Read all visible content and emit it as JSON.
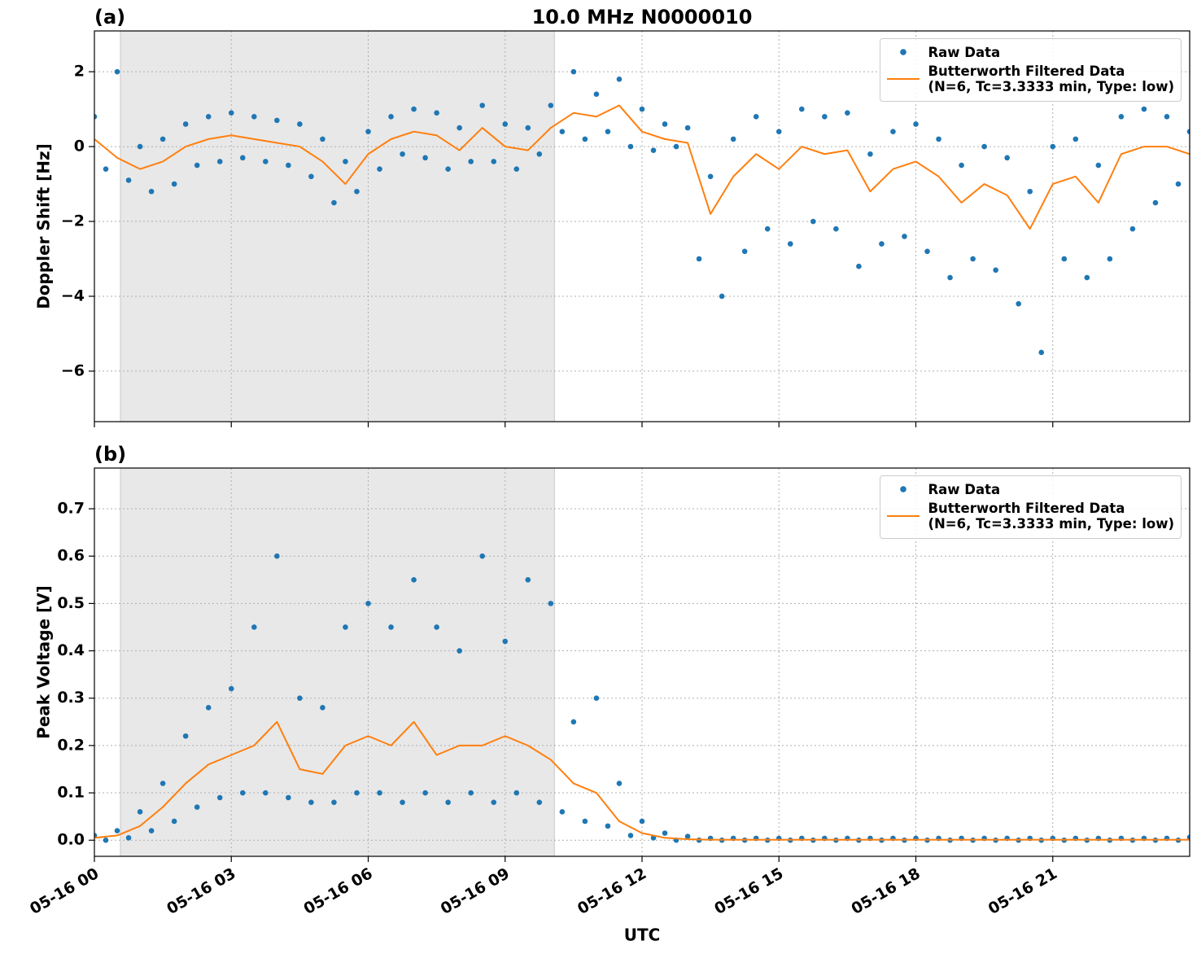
{
  "chart_data": [
    {
      "type": "line",
      "panel_label": "(a)",
      "title": "10.0 MHz N0000010",
      "ylabel": "Doppler Shift [Hz]",
      "xlim": [
        0,
        24
      ],
      "xticks": [
        0,
        3,
        6,
        9,
        12,
        15,
        18,
        21
      ],
      "ylim": [
        -7.35,
        3.09
      ],
      "yticks": [
        {
          "value": -6,
          "label": "−6"
        },
        {
          "value": -4,
          "label": "−4"
        },
        {
          "value": -2,
          "label": "−2"
        },
        0,
        2
      ],
      "grid": true,
      "legend": "upper right",
      "shaded_span": [
        0.57,
        10.08
      ],
      "series": [
        {
          "name": "Raw Data",
          "style": "dots",
          "color": "#1f77b4",
          "x": [
            0,
            0.25,
            0.5,
            0.75,
            1,
            1.25,
            1.5,
            1.75,
            2,
            2.25,
            2.5,
            2.75,
            3,
            3.25,
            3.5,
            3.75,
            4,
            4.25,
            4.5,
            4.75,
            5,
            5.25,
            5.5,
            5.75,
            6,
            6.25,
            6.5,
            6.75,
            7,
            7.25,
            7.5,
            7.75,
            8,
            8.25,
            8.5,
            8.75,
            9,
            9.25,
            9.5,
            9.75,
            10,
            10.25,
            10.5,
            10.75,
            11,
            11.25,
            11.5,
            11.75,
            12,
            12.25,
            12.5,
            12.75,
            13,
            13.25,
            13.5,
            13.75,
            14,
            14.25,
            14.5,
            14.75,
            15,
            15.25,
            15.5,
            15.75,
            16,
            16.25,
            16.5,
            16.75,
            17,
            17.25,
            17.5,
            17.75,
            18,
            18.25,
            18.5,
            18.75,
            19,
            19.25,
            19.5,
            19.75,
            20,
            20.25,
            20.5,
            20.75,
            21,
            21.25,
            21.5,
            21.75,
            22,
            22.25,
            22.5,
            22.75,
            23,
            23.25,
            23.5,
            23.75,
            24
          ],
          "values": [
            0.8,
            -0.6,
            2.0,
            -0.9,
            0.0,
            -1.2,
            0.2,
            -1.0,
            0.6,
            -0.5,
            0.8,
            -0.4,
            0.9,
            -0.3,
            0.8,
            -0.4,
            0.7,
            -0.5,
            0.6,
            -0.8,
            0.2,
            -1.5,
            -0.4,
            -1.2,
            0.4,
            -0.6,
            0.8,
            -0.2,
            1.0,
            -0.3,
            0.9,
            -0.6,
            0.5,
            -0.4,
            1.1,
            -0.4,
            0.6,
            -0.6,
            0.5,
            -0.2,
            1.1,
            0.4,
            2.0,
            0.2,
            1.4,
            0.4,
            1.8,
            0.0,
            1.0,
            -0.1,
            0.6,
            0.0,
            0.5,
            -3.0,
            -0.8,
            -4.0,
            0.2,
            -2.8,
            0.8,
            -2.2,
            0.4,
            -2.6,
            1.0,
            -2.0,
            0.8,
            -2.2,
            0.9,
            -3.2,
            -0.2,
            -2.6,
            0.4,
            -2.4,
            0.6,
            -2.8,
            0.2,
            -3.5,
            -0.5,
            -3.0,
            0.0,
            -3.3,
            -0.3,
            -4.2,
            -1.2,
            -5.5,
            0.0,
            -3.0,
            0.2,
            -3.5,
            -0.5,
            -3.0,
            0.8,
            -2.2,
            1.0,
            -1.5,
            0.8,
            -1.0,
            0.4
          ]
        },
        {
          "name": "Butterworth Filtered Data\n(N=6, Tc=3.3333 min, Type: low)",
          "style": "line",
          "color": "#ff7f0e",
          "x": [
            0,
            0.5,
            1,
            1.5,
            2,
            2.5,
            3,
            3.5,
            4,
            4.5,
            5,
            5.5,
            6,
            6.5,
            7,
            7.5,
            8,
            8.5,
            9,
            9.5,
            10,
            10.5,
            11,
            11.5,
            12,
            12.5,
            13,
            13.5,
            14,
            14.5,
            15,
            15.5,
            16,
            16.5,
            17,
            17.5,
            18,
            18.5,
            19,
            19.5,
            20,
            20.5,
            21,
            21.5,
            22,
            22.5,
            23,
            23.5,
            24
          ],
          "values": [
            0.2,
            -0.3,
            -0.6,
            -0.4,
            0.0,
            0.2,
            0.3,
            0.2,
            0.1,
            0.0,
            -0.4,
            -1.0,
            -0.2,
            0.2,
            0.4,
            0.3,
            -0.1,
            0.5,
            0.0,
            -0.1,
            0.5,
            0.9,
            0.8,
            1.1,
            0.4,
            0.2,
            0.1,
            -1.8,
            -0.8,
            -0.2,
            -0.6,
            0.0,
            -0.2,
            -0.1,
            -1.2,
            -0.6,
            -0.4,
            -0.8,
            -1.5,
            -1.0,
            -1.3,
            -2.2,
            -1.0,
            -0.8,
            -1.5,
            -0.2,
            0.0,
            0.0,
            -0.2
          ]
        }
      ]
    },
    {
      "type": "line",
      "panel_label": "(b)",
      "ylabel": "Peak Voltage [V]",
      "xlabel": "UTC",
      "xlim": [
        0,
        24
      ],
      "xticks": [
        {
          "value": 0,
          "label": "05-16 00"
        },
        {
          "value": 3,
          "label": "05-16 03"
        },
        {
          "value": 6,
          "label": "05-16 06"
        },
        {
          "value": 9,
          "label": "05-16 09"
        },
        {
          "value": 12,
          "label": "05-16 12"
        },
        {
          "value": 15,
          "label": "05-16 15"
        },
        {
          "value": 18,
          "label": "05-16 18"
        },
        {
          "value": 21,
          "label": "05-16 21"
        }
      ],
      "ylim": [
        -0.034,
        0.786
      ],
      "yticks": [
        {
          "value": 0,
          "label": "0.0"
        },
        0.1,
        0.2,
        0.3,
        0.4,
        0.5,
        0.6,
        0.7
      ],
      "grid": true,
      "legend": "upper right",
      "shaded_span": [
        0.57,
        10.08
      ],
      "series": [
        {
          "name": "Raw Data",
          "style": "dots",
          "color": "#1f77b4",
          "x": [
            0,
            0.25,
            0.5,
            0.75,
            1,
            1.25,
            1.5,
            1.75,
            2,
            2.25,
            2.5,
            2.75,
            3,
            3.25,
            3.5,
            3.75,
            4,
            4.25,
            4.5,
            4.75,
            5,
            5.25,
            5.5,
            5.75,
            6,
            6.25,
            6.5,
            6.75,
            7,
            7.25,
            7.5,
            7.75,
            8,
            8.25,
            8.5,
            8.75,
            9,
            9.25,
            9.5,
            9.75,
            10,
            10.25,
            10.5,
            10.75,
            11,
            11.25,
            11.5,
            11.75,
            12,
            12.25,
            12.5,
            12.75,
            13,
            13.25,
            13.5,
            13.75,
            14,
            14.25,
            14.5,
            14.75,
            15,
            15.25,
            15.5,
            15.75,
            16,
            16.25,
            16.5,
            16.75,
            17,
            17.25,
            17.5,
            17.75,
            18,
            18.25,
            18.5,
            18.75,
            19,
            19.25,
            19.5,
            19.75,
            20,
            20.25,
            20.5,
            20.75,
            21,
            21.25,
            21.5,
            21.75,
            22,
            22.25,
            22.5,
            22.75,
            23,
            23.25,
            23.5,
            23.75,
            24
          ],
          "values": [
            0.01,
            0.0,
            0.02,
            0.005,
            0.06,
            0.02,
            0.12,
            0.04,
            0.22,
            0.07,
            0.28,
            0.09,
            0.32,
            0.1,
            0.45,
            0.1,
            0.6,
            0.09,
            0.3,
            0.08,
            0.28,
            0.08,
            0.45,
            0.1,
            0.5,
            0.1,
            0.45,
            0.08,
            0.55,
            0.1,
            0.45,
            0.08,
            0.4,
            0.1,
            0.6,
            0.08,
            0.42,
            0.1,
            0.55,
            0.08,
            0.5,
            0.06,
            0.25,
            0.04,
            0.3,
            0.03,
            0.12,
            0.01,
            0.04,
            0.005,
            0.015,
            0.0,
            0.008,
            0.0,
            0.004,
            0.0,
            0.004,
            0.0,
            0.004,
            0.0,
            0.004,
            0.0,
            0.004,
            0.0,
            0.004,
            0.0,
            0.004,
            0.0,
            0.004,
            0.0,
            0.004,
            0.0,
            0.004,
            0.0,
            0.004,
            0.0,
            0.004,
            0.0,
            0.004,
            0.0,
            0.004,
            0.0,
            0.004,
            0.0,
            0.004,
            0.0,
            0.004,
            0.0,
            0.004,
            0.0,
            0.004,
            0.0,
            0.004,
            0.0,
            0.004,
            0.0,
            0.006
          ]
        },
        {
          "name": "Butterworth Filtered Data\n(N=6, Tc=3.3333 min, Type: low)",
          "style": "line",
          "color": "#ff7f0e",
          "x": [
            0,
            0.5,
            1,
            1.5,
            2,
            2.5,
            3,
            3.5,
            4,
            4.5,
            5,
            5.5,
            6,
            6.5,
            7,
            7.5,
            8,
            8.5,
            9,
            9.5,
            10,
            10.5,
            11,
            11.5,
            12,
            12.5,
            13,
            13.5,
            14,
            14.5,
            15,
            15.5,
            16,
            16.5,
            17,
            17.5,
            18,
            18.5,
            19,
            19.5,
            20,
            20.5,
            21,
            21.5,
            22,
            22.5,
            23,
            23.5,
            24
          ],
          "values": [
            0.005,
            0.01,
            0.03,
            0.07,
            0.12,
            0.16,
            0.18,
            0.2,
            0.25,
            0.15,
            0.14,
            0.2,
            0.22,
            0.2,
            0.25,
            0.18,
            0.2,
            0.2,
            0.22,
            0.2,
            0.17,
            0.12,
            0.1,
            0.04,
            0.015,
            0.005,
            0.002,
            0.001,
            0.001,
            0.001,
            0.001,
            0.001,
            0.001,
            0.001,
            0.001,
            0.001,
            0.001,
            0.001,
            0.001,
            0.001,
            0.001,
            0.001,
            0.001,
            0.001,
            0.001,
            0.001,
            0.001,
            0.001,
            0.001
          ]
        }
      ]
    }
  ]
}
